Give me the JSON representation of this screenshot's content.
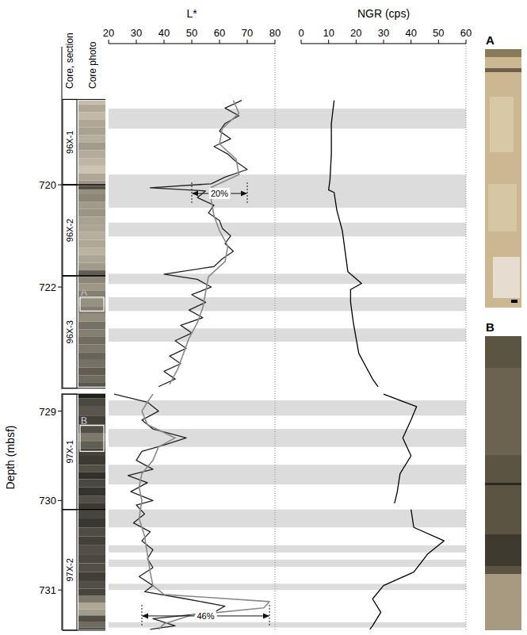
{
  "headers": {
    "section": "Core, section",
    "photo": "Core photo"
  },
  "depth_label": "Depth (mbsf)",
  "sections": [
    {
      "label": "96X-1",
      "top": 718.33,
      "bottom": 720.0
    },
    {
      "label": "96X-2",
      "top": 720.0,
      "bottom": 721.78
    },
    {
      "label": "96X-3",
      "top": 721.78,
      "bottom": 723.98
    },
    {
      "label": "97X-1",
      "top": 728.81,
      "bottom": 730.1
    },
    {
      "label": "97X-2",
      "top": 730.1,
      "bottom": 731.45
    }
  ],
  "insets": [
    {
      "label": "A",
      "top": 722.2,
      "bottom": 722.47
    },
    {
      "label": "B",
      "top": 729.16,
      "bottom": 729.45
    }
  ],
  "chart_data": [
    {
      "type": "line",
      "x_label": "L*",
      "xlim": [
        20,
        80
      ],
      "xticks": [
        20,
        30,
        40,
        50,
        60,
        70,
        80
      ],
      "ylim": [
        717.3,
        724.0
      ],
      "yticks": [
        720,
        722
      ],
      "tick_labels": true,
      "bands": [
        [
          718.51,
          718.9
        ],
        [
          719.8,
          720.45
        ],
        [
          720.74,
          721.01
        ],
        [
          721.74,
          721.94
        ],
        [
          722.2,
          722.47
        ],
        [
          722.81,
          723.07
        ]
      ],
      "annotations": [
        {
          "text": "20%",
          "from": 50,
          "to": 70,
          "depth": 720.17
        }
      ],
      "series": [
        {
          "color": "#222222",
          "x": [
            68,
            62,
            67,
            62,
            60,
            64,
            58,
            63,
            66,
            70,
            62,
            57,
            35,
            55,
            52,
            58,
            56,
            60,
            61,
            64,
            62,
            65,
            61,
            58,
            40,
            52,
            57,
            50,
            55,
            49,
            54,
            46,
            50,
            44,
            48,
            42,
            46,
            40,
            44,
            38
          ],
          "y": [
            718.35,
            718.5,
            718.65,
            718.8,
            718.95,
            719.1,
            719.25,
            719.4,
            719.55,
            719.7,
            719.85,
            719.98,
            720.06,
            720.12,
            720.25,
            720.4,
            720.55,
            720.7,
            720.85,
            721.0,
            721.15,
            721.3,
            721.45,
            721.6,
            721.75,
            721.85,
            722.0,
            722.15,
            722.3,
            722.45,
            722.6,
            722.75,
            722.9,
            723.05,
            723.2,
            723.35,
            723.5,
            723.65,
            723.8,
            723.95
          ]
        },
        {
          "color": "#8a8a8a",
          "x": [
            65,
            67,
            61,
            60,
            66,
            67,
            57,
            57,
            58,
            60,
            63,
            62,
            56,
            55,
            54,
            52,
            49,
            47,
            45,
            42
          ],
          "y": [
            718.35,
            718.6,
            718.9,
            719.2,
            719.5,
            719.8,
            720.05,
            720.3,
            720.6,
            720.9,
            721.2,
            721.5,
            721.8,
            722.1,
            722.4,
            722.7,
            723.0,
            723.3,
            723.6,
            723.9
          ]
        }
      ]
    },
    {
      "type": "line",
      "x_label": "NGR (cps)",
      "xlim": [
        0,
        60
      ],
      "xticks": [
        0,
        10,
        20,
        30,
        40,
        50,
        60
      ],
      "ylim": [
        717.3,
        724.0
      ],
      "tick_labels": "x",
      "series": [
        {
          "color": "#000000",
          "x": [
            12,
            11,
            11,
            10.5,
            10,
            12,
            13,
            15,
            16,
            17,
            22,
            18,
            18,
            19,
            20,
            21,
            24,
            26,
            28
          ],
          "y": [
            718.35,
            718.8,
            719.4,
            719.9,
            720.1,
            720.15,
            720.5,
            720.9,
            721.3,
            721.7,
            721.93,
            722.05,
            722.3,
            722.7,
            723.0,
            723.3,
            723.6,
            723.8,
            723.95
          ]
        }
      ]
    },
    {
      "type": "line",
      "xlim": [
        20,
        80
      ],
      "ylim": [
        728.8,
        731.45
      ],
      "yticks": [
        729,
        730,
        731
      ],
      "tick_labels": "y",
      "bands": [
        [
          728.88,
          729.05
        ],
        [
          729.2,
          729.4
        ],
        [
          729.6,
          729.82
        ],
        [
          730.1,
          730.3
        ],
        [
          730.5,
          730.58
        ],
        [
          730.66,
          730.74
        ],
        [
          730.93,
          731.0
        ],
        [
          731.36,
          731.42
        ]
      ],
      "annotations": [
        {
          "text": "46%",
          "from": 32,
          "to": 78,
          "depth": 731.29
        }
      ],
      "series": [
        {
          "color": "#222222",
          "x": [
            22,
            34,
            38,
            32,
            36,
            48,
            40,
            32,
            30,
            36,
            27,
            34,
            28,
            36,
            30,
            33,
            29,
            35,
            32,
            36,
            34,
            36,
            31,
            36,
            33,
            48,
            62,
            58,
            36,
            44,
            35
          ],
          "y": [
            728.81,
            728.9,
            729.0,
            729.1,
            729.2,
            729.3,
            729.38,
            729.45,
            729.55,
            729.65,
            729.72,
            729.8,
            729.9,
            730.0,
            730.05,
            730.15,
            730.25,
            730.35,
            730.45,
            730.55,
            730.65,
            730.75,
            730.85,
            730.95,
            731.02,
            731.1,
            731.18,
            731.25,
            731.32,
            731.4,
            731.44
          ]
        },
        {
          "color": "#8a8a8a",
          "x": [
            36,
            34,
            32,
            34,
            44,
            38,
            36,
            32,
            31,
            32,
            31,
            33,
            34,
            35,
            36,
            40,
            78,
            76,
            50,
            40,
            38
          ],
          "y": [
            728.81,
            728.9,
            729.0,
            729.15,
            729.3,
            729.4,
            729.55,
            729.7,
            729.85,
            730.0,
            730.2,
            730.4,
            730.6,
            730.8,
            730.95,
            731.05,
            731.13,
            731.2,
            731.28,
            731.38,
            731.44
          ]
        }
      ]
    },
    {
      "type": "line",
      "xlim": [
        0,
        60
      ],
      "ylim": [
        728.8,
        731.45
      ],
      "tick_labels": false,
      "series": [
        {
          "color": "#000000",
          "x": [
            30,
            42,
            40,
            37,
            40,
            36,
            35,
            34,
            null,
            40,
            41,
            52,
            46,
            41,
            30,
            26,
            29,
            26,
            25
          ],
          "y": [
            728.81,
            728.95,
            729.1,
            729.3,
            729.5,
            729.7,
            729.9,
            730.03,
            null,
            730.1,
            730.3,
            730.45,
            730.6,
            730.8,
            730.95,
            731.1,
            731.25,
            731.4,
            731.44
          ]
        }
      ]
    }
  ]
}
